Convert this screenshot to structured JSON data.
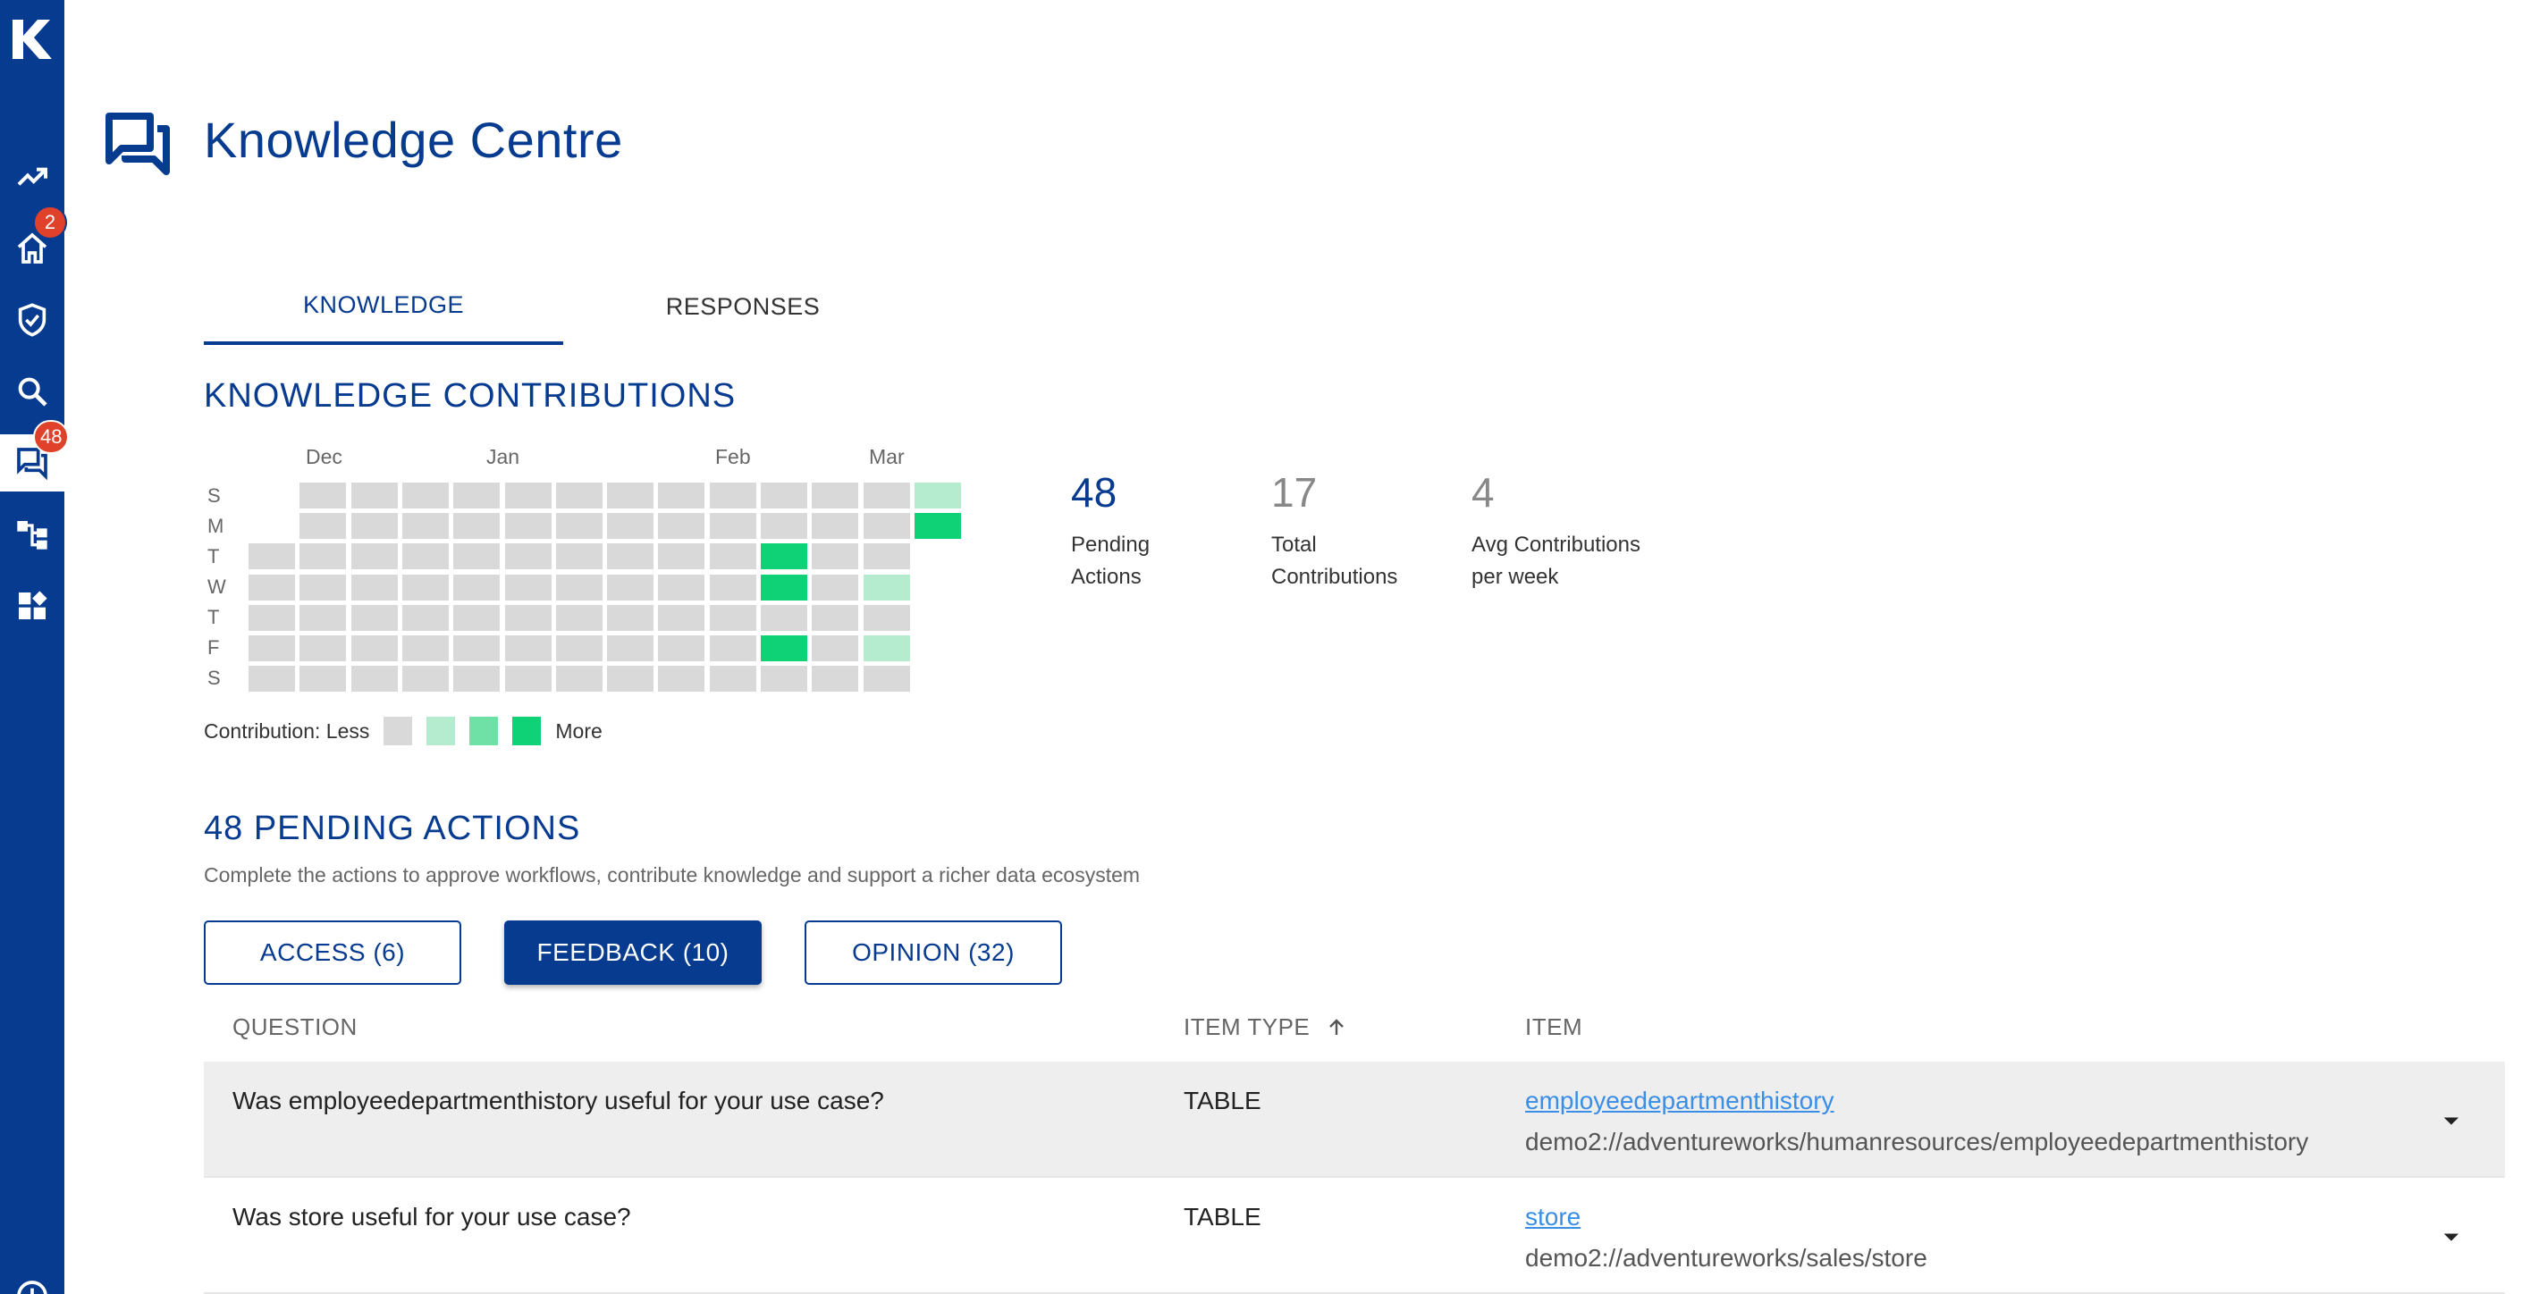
{
  "sidebar": {
    "logo": "k-logo-icon",
    "items": [
      {
        "icon": "trending-up-icon",
        "badge": ""
      },
      {
        "icon": "home-icon",
        "badge": "2"
      },
      {
        "icon": "task-check-icon",
        "badge": ""
      },
      {
        "icon": "search-icon",
        "badge": ""
      },
      {
        "icon": "forum-icon",
        "badge": "48",
        "active": true
      },
      {
        "icon": "lineage-icon",
        "badge": ""
      },
      {
        "icon": "widgets-icon",
        "badge": ""
      },
      {
        "icon": "history-icon",
        "badge": ""
      }
    ]
  },
  "header": {
    "title": "Knowledge Centre",
    "icon": "forum-icon"
  },
  "tabs": [
    {
      "label": "KNOWLEDGE",
      "active": true
    },
    {
      "label": "RESPONSES",
      "active": false
    }
  ],
  "contributions": {
    "title": "KNOWLEDGE CONTRIBUTIONS",
    "months": [
      "Dec",
      "Jan",
      "Feb",
      "Mar"
    ],
    "days": [
      "S",
      "M",
      "T",
      "W",
      "T",
      "F",
      "S"
    ],
    "colors": {
      "level0": "#d9d9d9",
      "level1": "#b5ecd0",
      "level2": "#6fe0a6",
      "level3": "#0fd175"
    },
    "active_cells": [
      {
        "week": 13,
        "day": 0,
        "level": 1
      },
      {
        "week": 13,
        "day": 1,
        "level": 3
      },
      {
        "week": 10,
        "day": 2,
        "level": 3
      },
      {
        "week": 10,
        "day": 3,
        "level": 3
      },
      {
        "week": 12,
        "day": 3,
        "level": 1
      },
      {
        "week": 10,
        "day": 5,
        "level": 3
      },
      {
        "week": 12,
        "day": 5,
        "level": 1
      }
    ],
    "legend": {
      "less": "Contribution: Less",
      "more": "More"
    }
  },
  "stats": [
    {
      "value": "48",
      "label_line1": "Pending",
      "label_line2": "Actions",
      "color": "#063b8f"
    },
    {
      "value": "17",
      "label_line1": "Total",
      "label_line2": "Contributions",
      "color": "#888888"
    },
    {
      "value": "4",
      "label_line1": "Avg Contributions",
      "label_line2": "per week",
      "color": "#888888"
    }
  ],
  "pending": {
    "title": "48 PENDING ACTIONS",
    "subtitle": "Complete the actions to approve workflows, contribute knowledge and support a richer data ecosystem",
    "filters": [
      {
        "label": "ACCESS (6)",
        "active": false
      },
      {
        "label": "FEEDBACK (10)",
        "active": true
      },
      {
        "label": "OPINION (32)",
        "active": false
      }
    ]
  },
  "table": {
    "columns": [
      "QUESTION",
      "ITEM TYPE",
      "ITEM"
    ],
    "rows": [
      {
        "question": "Was employeedepartmenthistory useful for your use case?",
        "type": "TABLE",
        "item": "employeedepartmenthistory",
        "path": "demo2://adventureworks/humanresources/employeedepartmenthistory"
      },
      {
        "question": "Was store useful for your use case?",
        "type": "TABLE",
        "item": "store",
        "path": "demo2://adventureworks/sales/store"
      }
    ]
  }
}
